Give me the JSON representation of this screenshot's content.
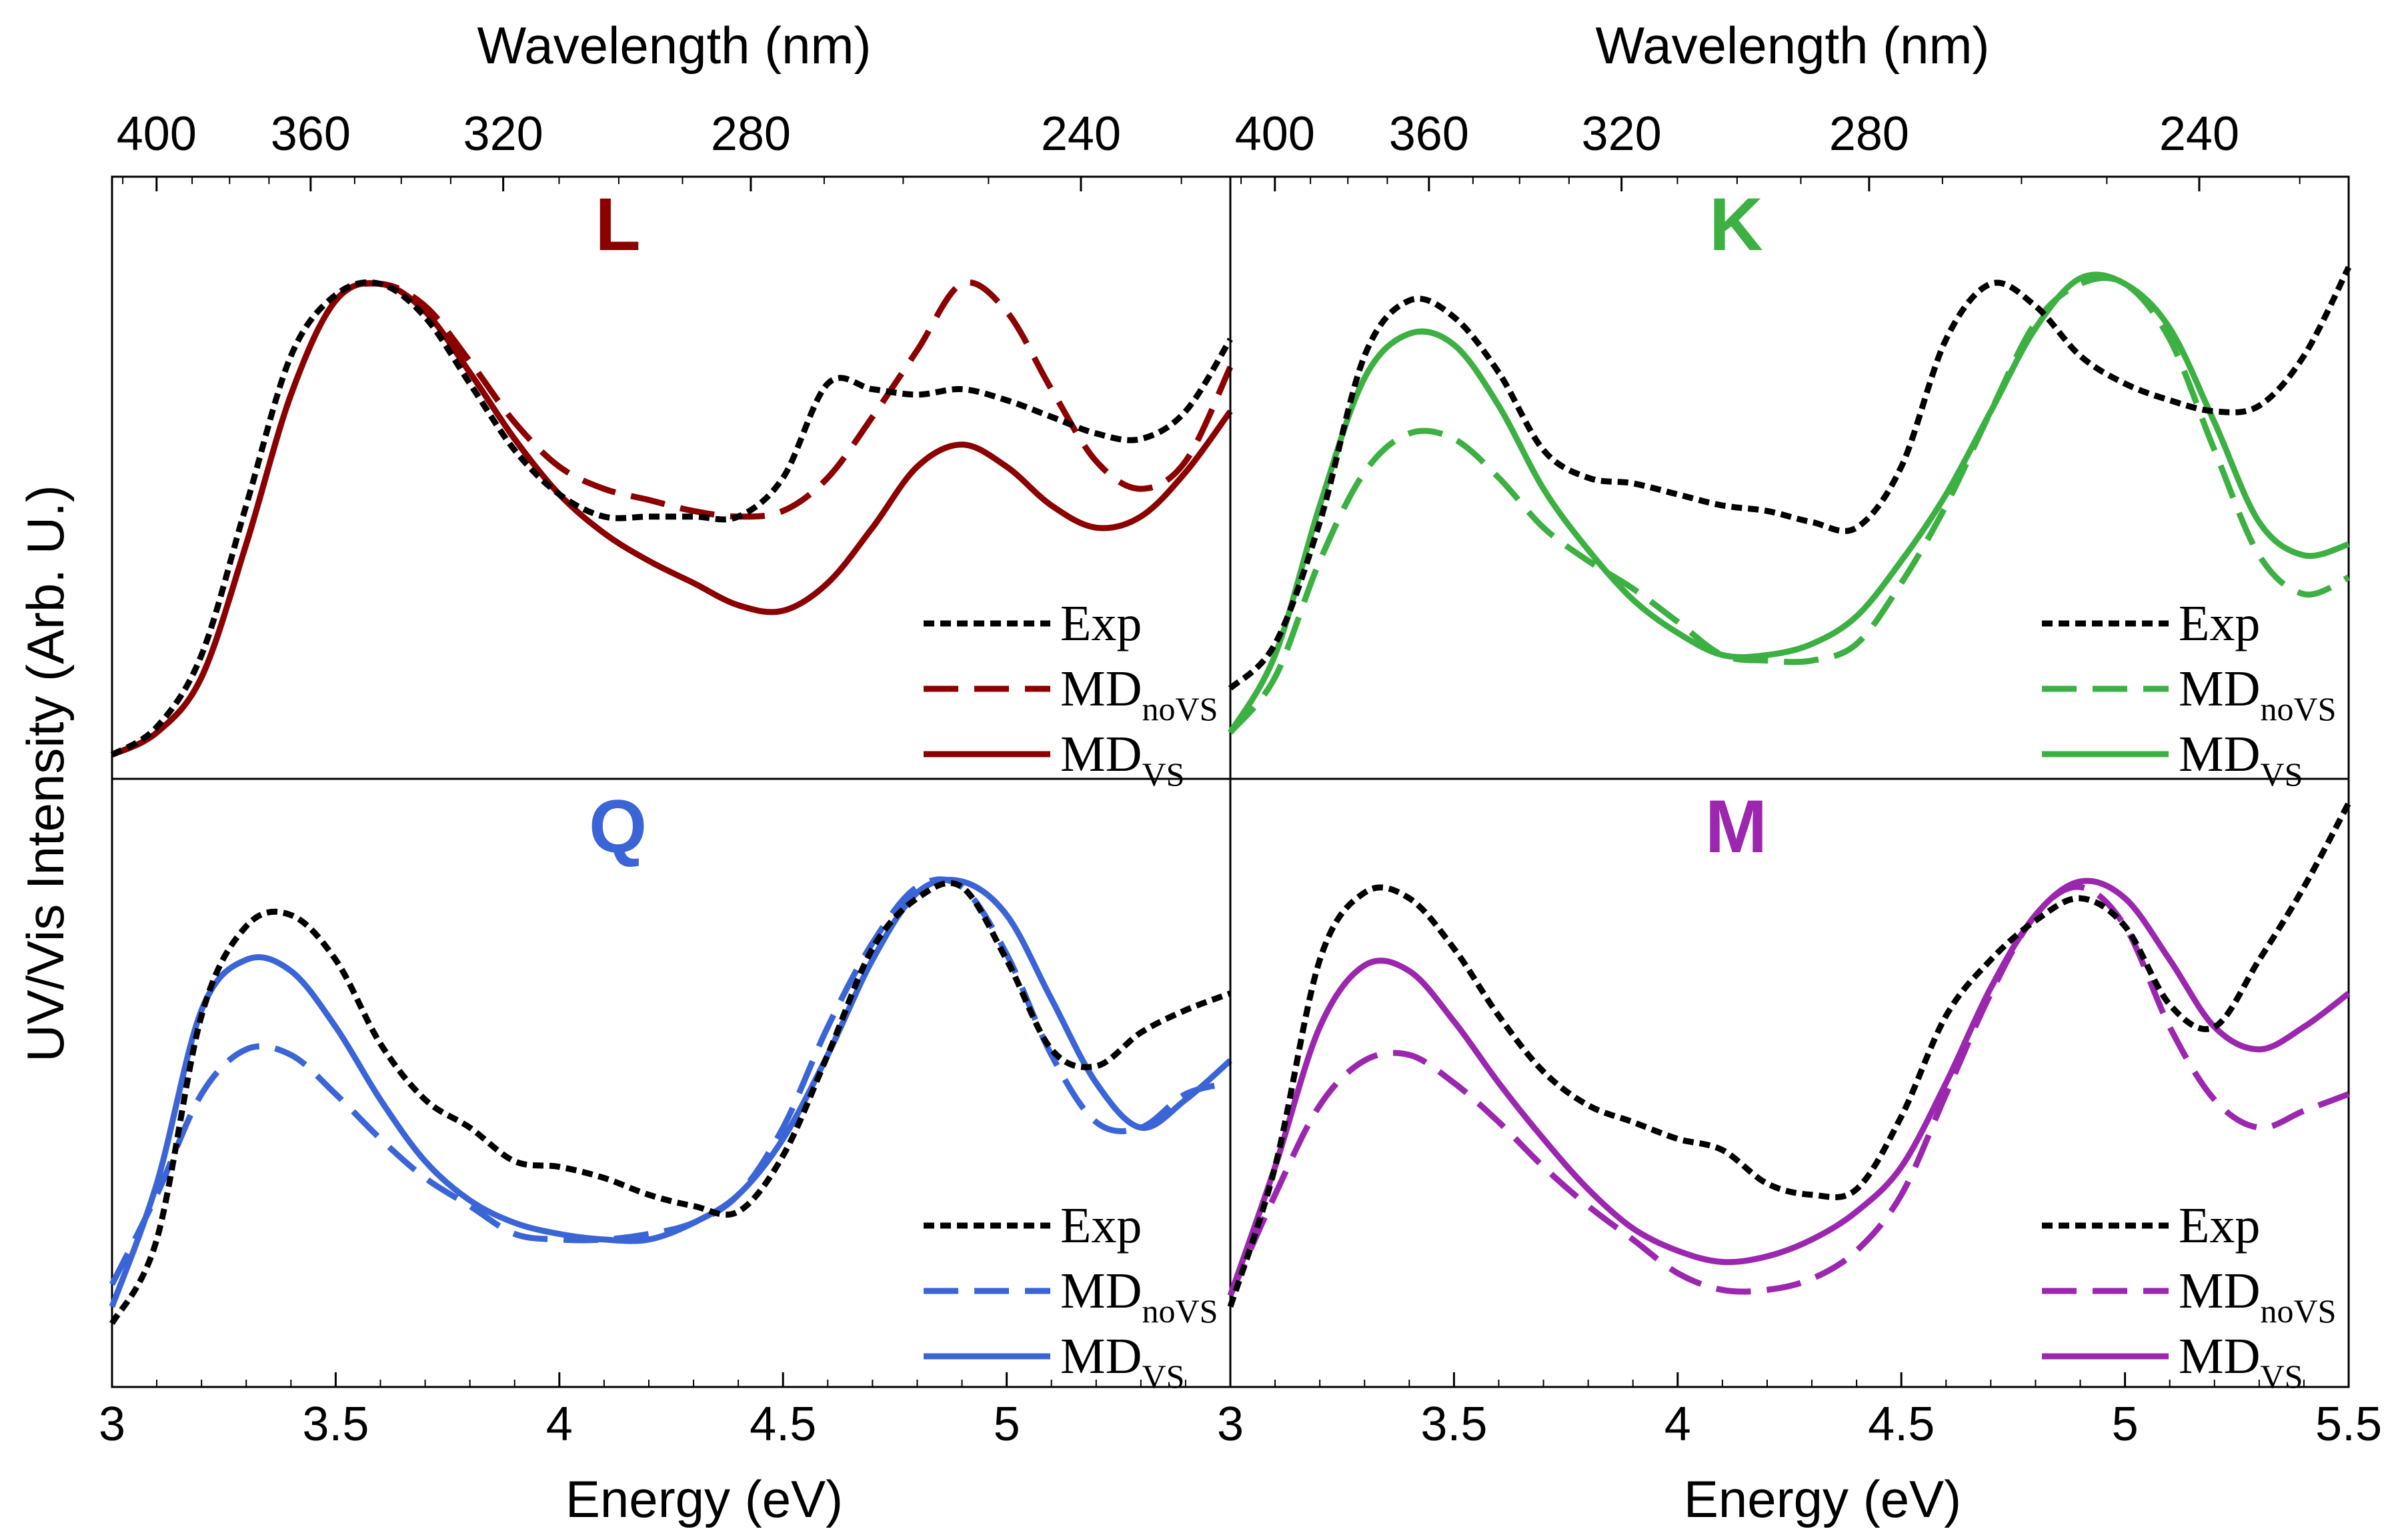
{
  "chart_data": {
    "type": "line",
    "top_axis_title": "Wavelength (nm)",
    "bottom_axis_title": "Energy (eV)",
    "y_axis_title": "UV/Vis Intensity (Arb. U.)",
    "bottom_ticks": [
      "3",
      "3.5",
      "4",
      "4.5",
      "5",
      "5.5"
    ],
    "bottom_tick_values": [
      3,
      3.5,
      4,
      4.5,
      5,
      5.5
    ],
    "top_ticks": [
      "400",
      "360",
      "320",
      "280",
      "240"
    ],
    "top_tick_values": [
      400,
      360,
      320,
      280,
      240
    ],
    "xlim": [
      3,
      5.5
    ],
    "ylim": [
      0,
      1
    ],
    "legend": {
      "exp": "Exp",
      "md_novs_main": "MD",
      "md_novs_sub": "noVS",
      "md_vs_main": "MD",
      "md_vs_sub": "VS"
    },
    "panels": [
      {
        "title": "L",
        "color": "#8B0000",
        "x": [
          3.0,
          3.1,
          3.2,
          3.3,
          3.4,
          3.5,
          3.6,
          3.7,
          3.8,
          3.9,
          4.0,
          4.1,
          4.2,
          4.3,
          4.4,
          4.5,
          4.6,
          4.7,
          4.8,
          4.9,
          5.0,
          5.1,
          5.2,
          5.3,
          5.4,
          5.5
        ],
        "series": [
          {
            "name": "Exp",
            "style": "dotted",
            "values": [
              0.0,
              0.05,
              0.18,
              0.45,
              0.72,
              0.83,
              0.85,
              0.79,
              0.67,
              0.55,
              0.47,
              0.43,
              0.43,
              0.43,
              0.43,
              0.5,
              0.67,
              0.66,
              0.65,
              0.66,
              0.64,
              0.61,
              0.58,
              0.57,
              0.62,
              0.75
            ]
          },
          {
            "name": "MDnoVS",
            "style": "dashed",
            "values": [
              0.0,
              0.04,
              0.14,
              0.38,
              0.65,
              0.82,
              0.85,
              0.81,
              0.71,
              0.6,
              0.52,
              0.48,
              0.46,
              0.44,
              0.43,
              0.44,
              0.5,
              0.61,
              0.73,
              0.85,
              0.8,
              0.66,
              0.53,
              0.48,
              0.53,
              0.7
            ]
          },
          {
            "name": "MDVS",
            "style": "solid",
            "values": [
              0.0,
              0.04,
              0.14,
              0.38,
              0.65,
              0.82,
              0.85,
              0.8,
              0.69,
              0.57,
              0.47,
              0.4,
              0.35,
              0.31,
              0.27,
              0.26,
              0.31,
              0.41,
              0.52,
              0.56,
              0.52,
              0.45,
              0.41,
              0.43,
              0.51,
              0.62
            ]
          }
        ]
      },
      {
        "title": "K",
        "color": "#3CB043",
        "x": [
          3.0,
          3.1,
          3.2,
          3.3,
          3.4,
          3.5,
          3.6,
          3.7,
          3.8,
          3.9,
          4.0,
          4.1,
          4.2,
          4.3,
          4.4,
          4.5,
          4.6,
          4.7,
          4.8,
          4.9,
          5.0,
          5.1,
          5.2,
          5.3,
          5.4,
          5.5
        ],
        "series": [
          {
            "name": "Exp",
            "style": "dotted",
            "values": [
              0.12,
              0.2,
              0.42,
              0.72,
              0.82,
              0.79,
              0.69,
              0.55,
              0.5,
              0.49,
              0.47,
              0.45,
              0.44,
              0.42,
              0.41,
              0.52,
              0.75,
              0.85,
              0.81,
              0.72,
              0.67,
              0.64,
              0.62,
              0.63,
              0.72,
              0.88
            ]
          },
          {
            "name": "MDnoVS",
            "style": "dashed",
            "values": [
              0.04,
              0.14,
              0.35,
              0.51,
              0.58,
              0.57,
              0.5,
              0.41,
              0.35,
              0.3,
              0.24,
              0.18,
              0.17,
              0.17,
              0.2,
              0.31,
              0.45,
              0.62,
              0.78,
              0.85,
              0.85,
              0.75,
              0.55,
              0.36,
              0.29,
              0.32
            ]
          },
          {
            "name": "MDVS",
            "style": "solid",
            "values": [
              0.04,
              0.18,
              0.45,
              0.68,
              0.76,
              0.74,
              0.63,
              0.48,
              0.37,
              0.28,
              0.22,
              0.18,
              0.18,
              0.2,
              0.25,
              0.35,
              0.47,
              0.62,
              0.77,
              0.86,
              0.85,
              0.77,
              0.6,
              0.42,
              0.36,
              0.38
            ]
          }
        ]
      },
      {
        "title": "Q",
        "color": "#3B65D6",
        "x": [
          3.0,
          3.1,
          3.2,
          3.3,
          3.4,
          3.5,
          3.6,
          3.7,
          3.8,
          3.9,
          4.0,
          4.1,
          4.2,
          4.3,
          4.4,
          4.5,
          4.6,
          4.7,
          4.8,
          4.9,
          5.0,
          5.1,
          5.2,
          5.3,
          5.4,
          5.5
        ],
        "series": [
          {
            "name": "Exp",
            "style": "dotted",
            "values": [
              0.07,
              0.22,
              0.62,
              0.78,
              0.8,
              0.72,
              0.57,
              0.47,
              0.42,
              0.36,
              0.35,
              0.33,
              0.3,
              0.28,
              0.27,
              0.37,
              0.55,
              0.74,
              0.83,
              0.85,
              0.72,
              0.56,
              0.53,
              0.59,
              0.63,
              0.66
            ]
          },
          {
            "name": "MDnoVS",
            "style": "dashed",
            "values": [
              0.14,
              0.3,
              0.48,
              0.56,
              0.55,
              0.48,
              0.4,
              0.33,
              0.28,
              0.23,
              0.22,
              0.22,
              0.23,
              0.25,
              0.3,
              0.42,
              0.6,
              0.75,
              0.85,
              0.85,
              0.73,
              0.55,
              0.43,
              0.42,
              0.48,
              0.5
            ]
          },
          {
            "name": "MDVS",
            "style": "solid",
            "values": [
              0.1,
              0.32,
              0.63,
              0.72,
              0.7,
              0.6,
              0.47,
              0.36,
              0.29,
              0.25,
              0.23,
              0.22,
              0.22,
              0.25,
              0.3,
              0.4,
              0.55,
              0.72,
              0.84,
              0.86,
              0.8,
              0.65,
              0.5,
              0.42,
              0.47,
              0.54
            ]
          }
        ]
      },
      {
        "title": "M",
        "color": "#9B27AF",
        "x": [
          3.0,
          3.1,
          3.2,
          3.3,
          3.4,
          3.5,
          3.6,
          3.7,
          3.8,
          3.9,
          4.0,
          4.1,
          4.2,
          4.3,
          4.4,
          4.5,
          4.6,
          4.7,
          4.8,
          4.9,
          5.0,
          5.1,
          5.2,
          5.3,
          5.4,
          5.5
        ],
        "series": [
          {
            "name": "Exp",
            "style": "dotted",
            "values": [
              0.1,
              0.35,
              0.72,
              0.84,
              0.83,
              0.74,
              0.62,
              0.52,
              0.46,
              0.43,
              0.4,
              0.38,
              0.32,
              0.3,
              0.31,
              0.44,
              0.62,
              0.72,
              0.79,
              0.83,
              0.78,
              0.64,
              0.6,
              0.72,
              0.85,
              1.0
            ]
          },
          {
            "name": "MDnoVS",
            "style": "dashed",
            "values": [
              0.12,
              0.3,
              0.46,
              0.54,
              0.55,
              0.5,
              0.43,
              0.35,
              0.28,
              0.22,
              0.16,
              0.13,
              0.13,
              0.15,
              0.2,
              0.3,
              0.48,
              0.66,
              0.8,
              0.85,
              0.78,
              0.6,
              0.47,
              0.42,
              0.45,
              0.48
            ]
          },
          {
            "name": "MDVS",
            "style": "solid",
            "values": [
              0.12,
              0.35,
              0.6,
              0.71,
              0.7,
              0.61,
              0.5,
              0.4,
              0.31,
              0.24,
              0.2,
              0.18,
              0.19,
              0.22,
              0.27,
              0.35,
              0.5,
              0.67,
              0.8,
              0.86,
              0.83,
              0.72,
              0.6,
              0.56,
              0.6,
              0.66
            ]
          }
        ]
      }
    ]
  }
}
